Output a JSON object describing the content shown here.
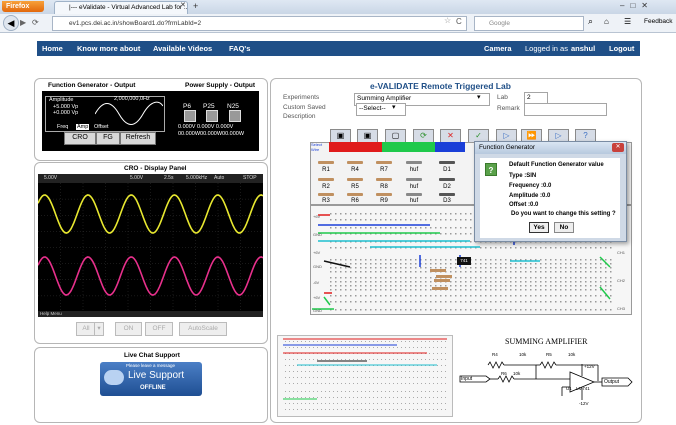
{
  "browser": {
    "app_button": "Firefox",
    "tab_title": "|--- eValidate - Virtual Advanced Lab for ...",
    "url": "ev1.pcs.dei.ac.in/showBoard1.do?frmLabId=2",
    "search_placeholder": "Google",
    "feedback": "Feedback"
  },
  "nav": {
    "home": "Home",
    "know_more": "Know more about",
    "videos": "Available Videos",
    "faq": "FAQ's",
    "camera": "Camera",
    "logged_in": "Logged in as",
    "username": "anshul",
    "logout": "Logout"
  },
  "function_generator": {
    "title": "Function Generator - Output",
    "amplitude_label": "Amplitude",
    "amplitude_value": "+5.000 Vp",
    "offset_value": "+0.000 Vp",
    "frequency": "2,000,000,0Hz",
    "freq_label": "Freq",
    "amp_label": "Amp",
    "offset_label": "Offset",
    "buttons": [
      "CRO",
      "FG",
      "Refresh"
    ]
  },
  "power_supply": {
    "title": "Power Supply - Output",
    "channels": [
      "P6",
      "P25",
      "N25"
    ],
    "row1": "0.000V 0.000V 0.000V",
    "row2": "00.000W00.000W00.000W"
  },
  "cro": {
    "title": "CRO - Display Panel",
    "top_readout": [
      "5.00V",
      "5.00V",
      "2.5s",
      "5.000kHz",
      "Auto",
      "STOP"
    ],
    "bottom_text": "Help Menu",
    "ch1_color": "#e8e830",
    "ch2_color": "#e8308c",
    "controls": [
      "All",
      "ON",
      "OFF",
      "AutoScale"
    ]
  },
  "chat": {
    "title": "Live Chat Support",
    "leave_message": "Please leave a message",
    "live": "Live Support",
    "status": "OFFLINE"
  },
  "lab": {
    "title": "e-VALIDATE Remote Triggered Lab",
    "experiments_label": "Experiments",
    "experiment_value": "Summing Amplifier",
    "lab_label": "Lab",
    "lab_value": "2",
    "custom_label": "Custom Saved",
    "custom_value": "--Select--",
    "description_label": "Description",
    "remark_label": "Remark"
  },
  "components": {
    "select_label": "Select Wire",
    "row1": [
      "R1",
      "R4",
      "R7",
      "huf",
      "D1"
    ],
    "row2": [
      "R2",
      "R5",
      "R8",
      "huf",
      "D2"
    ],
    "row3": [
      "R3",
      "R6",
      "R9",
      "huf",
      "D3"
    ]
  },
  "breadboard": {
    "left_labels": [
      "+6V",
      "GND",
      "+6V",
      "GND",
      "-6V",
      "+6V",
      "GND"
    ],
    "right_labels": [
      "CH1",
      "CH2",
      "CH3"
    ],
    "chip": "741"
  },
  "dialog": {
    "title": "Function Generator",
    "heading": "Default Function Generator value",
    "type": "Type :SIN",
    "frequency": "Frequency :0.0",
    "amplitude": "Amplitude :0.0",
    "offset": "Offset :0.0",
    "question": "Do you want to change this setting ?",
    "yes": "Yes",
    "no": "No"
  },
  "schematic": {
    "title": "SUMMING AMPLIFIER",
    "input": "Input",
    "output": "Output",
    "labels": [
      "R4",
      "10k",
      "R6",
      "10k",
      "R5",
      "10k",
      "+12V",
      "-12V",
      "U1",
      "LM741"
    ]
  }
}
